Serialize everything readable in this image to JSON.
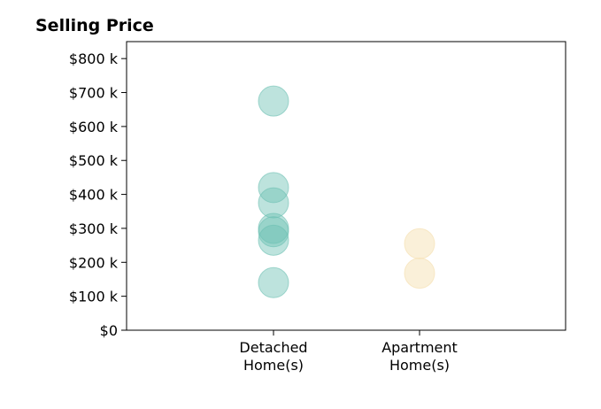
{
  "chart_data": {
    "type": "scatter",
    "title": "Selling Price",
    "xlabel": "",
    "ylabel": "",
    "categories": [
      "Detached\nHome(s)",
      "Apartment\nHome(s)"
    ],
    "ylim": [
      0,
      850
    ],
    "y_ticks": [
      0,
      100,
      200,
      300,
      400,
      500,
      600,
      700,
      800
    ],
    "y_tick_labels": [
      "$0",
      "$100 k",
      "$200 k",
      "$300 k",
      "$400 k",
      "$500 k",
      "$600 k",
      "$700 k",
      "$800 k"
    ],
    "grid": false,
    "legend": "none",
    "series": [
      {
        "category": "Detached\nHome(s)",
        "color": "#6cc0b3",
        "values": [
          675,
          420,
          375,
          300,
          290,
          265,
          140
        ]
      },
      {
        "category": "Apartment\nHome(s)",
        "color": "#f5deab",
        "values": [
          255,
          168
        ]
      }
    ]
  }
}
